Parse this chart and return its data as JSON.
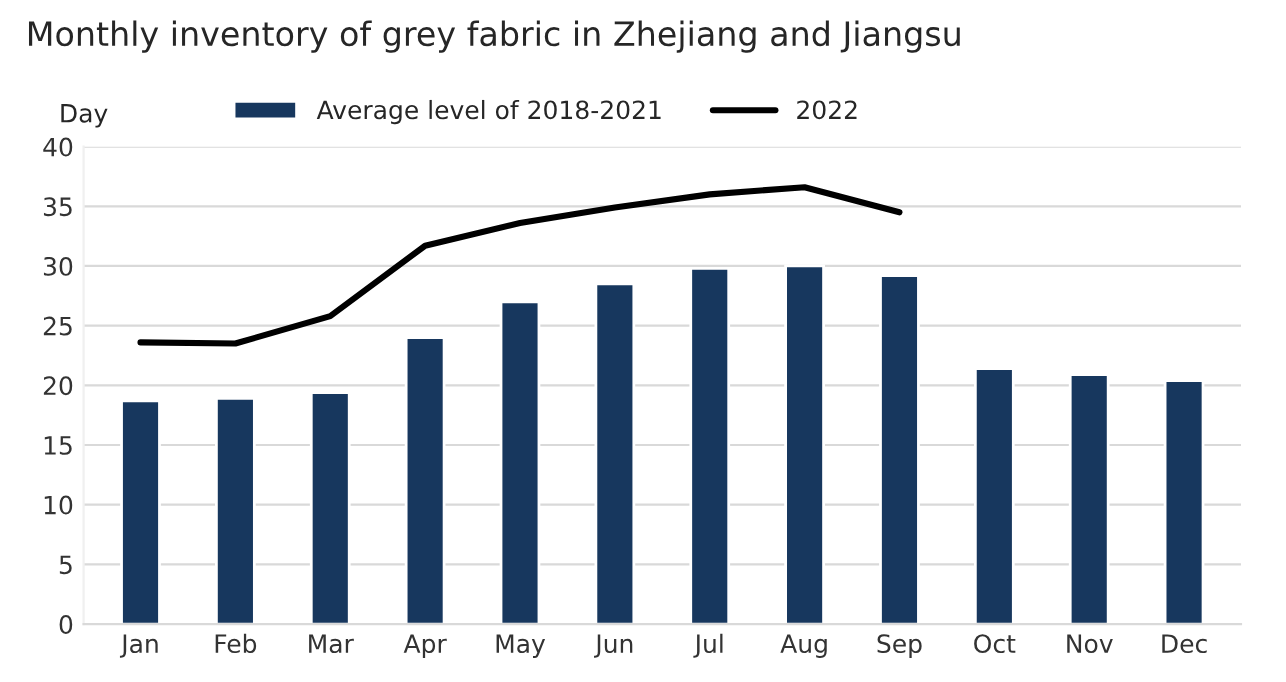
{
  "chart_data": {
    "type": "bar",
    "title": "Monthly inventory of grey fabric in Zhejiang and Jiangsu",
    "ylabel": "Day",
    "categories": [
      "Jan",
      "Feb",
      "Mar",
      "Apr",
      "May",
      "Jun",
      "Jul",
      "Aug",
      "Sep",
      "Oct",
      "Nov",
      "Dec"
    ],
    "series": [
      {
        "name": "Average level of 2018-2021",
        "color": "#17375e",
        "values": [
          18.7,
          18.9,
          19.4,
          24.0,
          27.0,
          28.5,
          29.8,
          30.0,
          29.2,
          21.4,
          20.9,
          20.4
        ]
      },
      {
        "name": "2022",
        "type": "line",
        "color": "#000000",
        "values": [
          23.6,
          23.5,
          25.8,
          31.7,
          33.6,
          34.9,
          36.0,
          36.6,
          34.5,
          null,
          null,
          null
        ]
      }
    ],
    "ylim": [
      0,
      40
    ],
    "yticks": [
      0,
      5,
      10,
      15,
      20,
      25,
      30,
      35,
      40
    ],
    "grid": "y",
    "legend": "top",
    "marker": "none",
    "line_style": "solid"
  }
}
